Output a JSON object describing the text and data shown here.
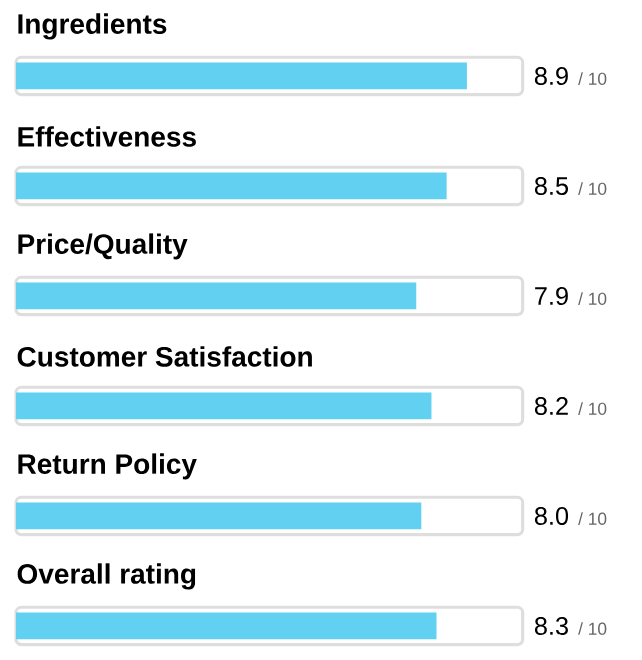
{
  "chart_data": {
    "type": "bar",
    "orientation": "horizontal",
    "categories": [
      "Ingredients",
      "Effectiveness",
      "Price/Quality",
      "Customer Satisfaction",
      "Return Policy",
      "Overall rating"
    ],
    "values": [
      8.9,
      8.5,
      7.9,
      8.2,
      8.0,
      8.3
    ],
    "value_labels": [
      "8.9",
      "8.5",
      "7.9",
      "8.2",
      "8.0",
      "8.3"
    ],
    "annotations": [
      "/ 10",
      "/ 10",
      "/ 10",
      "/ 10",
      "/ 10",
      "/ 10"
    ],
    "color": "#62d0f0",
    "xlim": [
      0,
      10
    ],
    "tick_labels": false,
    "grid": false
  }
}
